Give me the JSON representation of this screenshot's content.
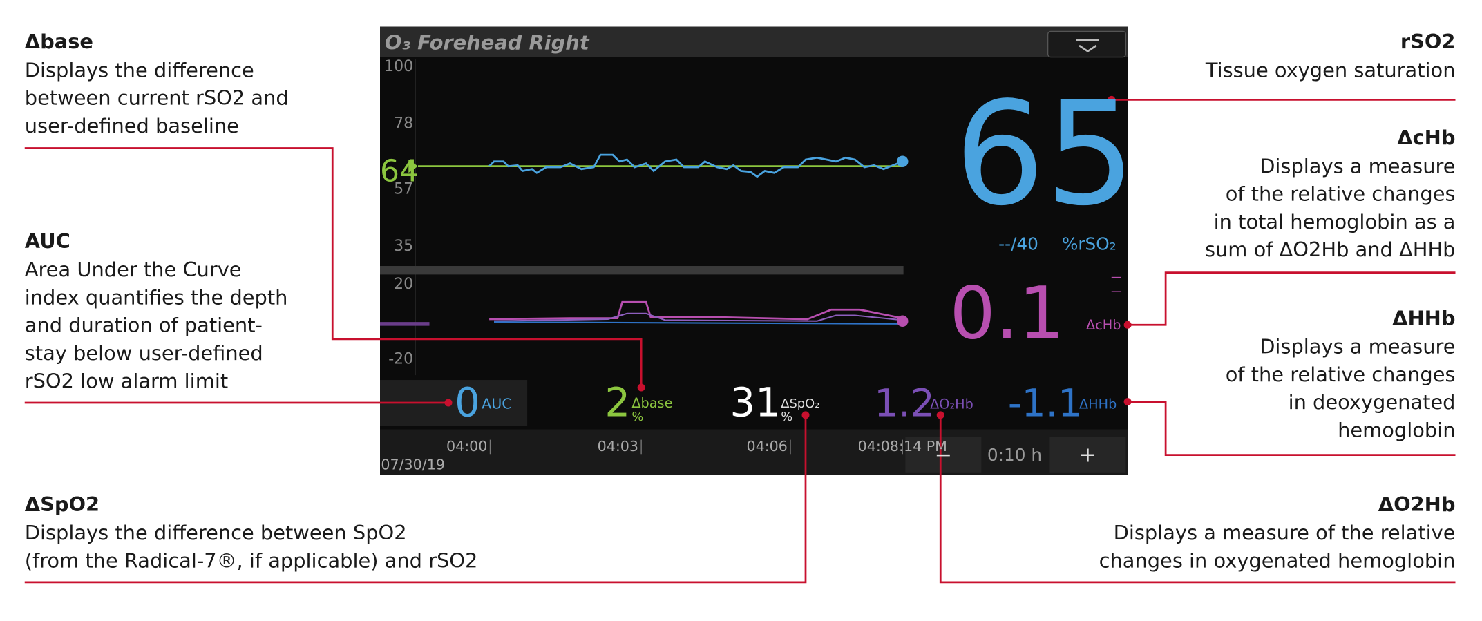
{
  "annotations": [
    {
      "title": "Δbase",
      "lines": [
        "Displays the difference",
        "between current rSO2 and",
        "user-defined baseline"
      ]
    },
    {
      "title": "AUC",
      "lines": [
        "Area Under the Curve",
        "index quantifies the depth",
        "and duration of patient-",
        "stay below user-defined",
        "rSO2 low alarm limit"
      ]
    },
    {
      "title": "ΔSpO2",
      "lines": [
        "Displays the difference between SpO2",
        "(from the Radical-7®, if applicable) and rSO2"
      ]
    },
    {
      "title": "rSO2",
      "lines": [
        "Tissue oxygen saturation"
      ]
    },
    {
      "title": "ΔcHb",
      "lines": [
        "Displays a measure",
        "of the relative changes",
        "in total hemoglobin as a",
        "sum of ΔO2Hb and ΔHHb"
      ]
    },
    {
      "title": "ΔHHb",
      "lines": [
        "Displays a measure",
        "of the relative changes",
        "in deoxygenated",
        "hemoglobin"
      ]
    },
    {
      "title": "ΔO2Hb",
      "lines": [
        "Displays a measure of the relative",
        "changes in oxygenated hemoglobin"
      ]
    }
  ],
  "screen": {
    "header": "O₃ Forehead Right",
    "upper_axis": [
      "100",
      "78",
      "57",
      "35"
    ],
    "lower_axis": [
      "20",
      "-20"
    ],
    "baseline": "64",
    "rso2": "65",
    "alarm": "--/40",
    "rso2_unit": "%rSO₂",
    "chb": "0.1",
    "chb_label": "ΔcHb",
    "auc": "0",
    "auc_label": "AUC",
    "dbase": "2",
    "dbase_label": "Δbase",
    "dbase_unit": "%",
    "dspo2": "31",
    "dspo2_label": "ΔSpO₂",
    "dspo2_unit": "%",
    "o2hb": "1.2",
    "o2hb_label": "ΔO₂Hb",
    "hhb": "-1.1",
    "hhb_label": "ΔHHb",
    "times": [
      "04:00",
      "04:03",
      "04:06",
      "04:08:14 PM"
    ],
    "date": "07/30/19",
    "zoom_out": "−",
    "span": "0:10 h",
    "zoom_in": "+"
  }
}
